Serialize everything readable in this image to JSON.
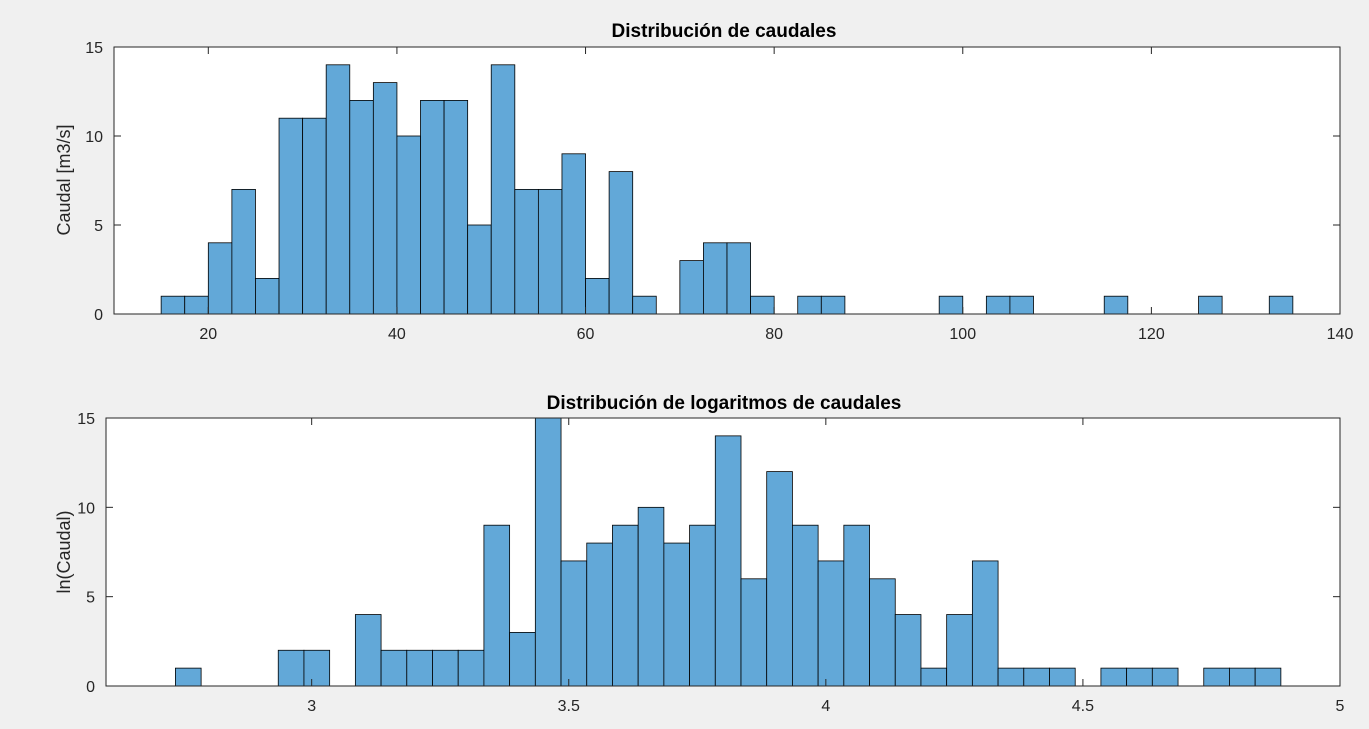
{
  "figure": {
    "background": "#f0f0f0",
    "axes_color": "#262626",
    "bar_face_color": "#62a8d8",
    "bar_edge_color": "#000000"
  },
  "chart_data": [
    {
      "type": "bar",
      "title": "Distribución de caudales",
      "xlabel": "",
      "ylabel": "Caudal [m3/s]",
      "xlim": [
        10,
        140
      ],
      "ylim": [
        0,
        15
      ],
      "xticks": [
        20,
        40,
        60,
        80,
        100,
        120,
        140
      ],
      "xtick_labels": [
        "20",
        "40",
        "60",
        "80",
        "100",
        "120",
        "140"
      ],
      "yticks": [
        0,
        5,
        10,
        15
      ],
      "ytick_labels": [
        "0",
        "5",
        "10",
        "15"
      ],
      "bin_start": 15,
      "bin_width": 2.5,
      "values": [
        1,
        1,
        4,
        7,
        2,
        11,
        11,
        14,
        12,
        13,
        10,
        12,
        12,
        5,
        14,
        7,
        7,
        9,
        2,
        8,
        1,
        0,
        3,
        4,
        4,
        1,
        0,
        1,
        1,
        0,
        0,
        0,
        0,
        1,
        0,
        1,
        1,
        0,
        0,
        0,
        1,
        0,
        0,
        0,
        1,
        0,
        0,
        1
      ]
    },
    {
      "type": "bar",
      "title": "Distribución de logaritmos de caudales",
      "xlabel": "",
      "ylabel": "ln(Caudal)",
      "xlim": [
        2.6,
        5.0
      ],
      "ylim": [
        0,
        15
      ],
      "xticks": [
        3,
        3.5,
        4,
        4.5,
        5
      ],
      "xtick_labels": [
        "3",
        "3.5",
        "4",
        "4.5",
        "5"
      ],
      "yticks": [
        0,
        5,
        10,
        15
      ],
      "ytick_labels": [
        "0",
        "5",
        "10",
        "15"
      ],
      "bin_start": 2.735,
      "bin_width": 0.05,
      "values": [
        1,
        0,
        0,
        0,
        2,
        2,
        0,
        4,
        2,
        2,
        2,
        2,
        9,
        3,
        15,
        7,
        8,
        9,
        10,
        8,
        9,
        14,
        6,
        12,
        9,
        7,
        9,
        6,
        4,
        1,
        4,
        7,
        1,
        1,
        1,
        0,
        1,
        1,
        1,
        0,
        1,
        1,
        1
      ]
    }
  ]
}
